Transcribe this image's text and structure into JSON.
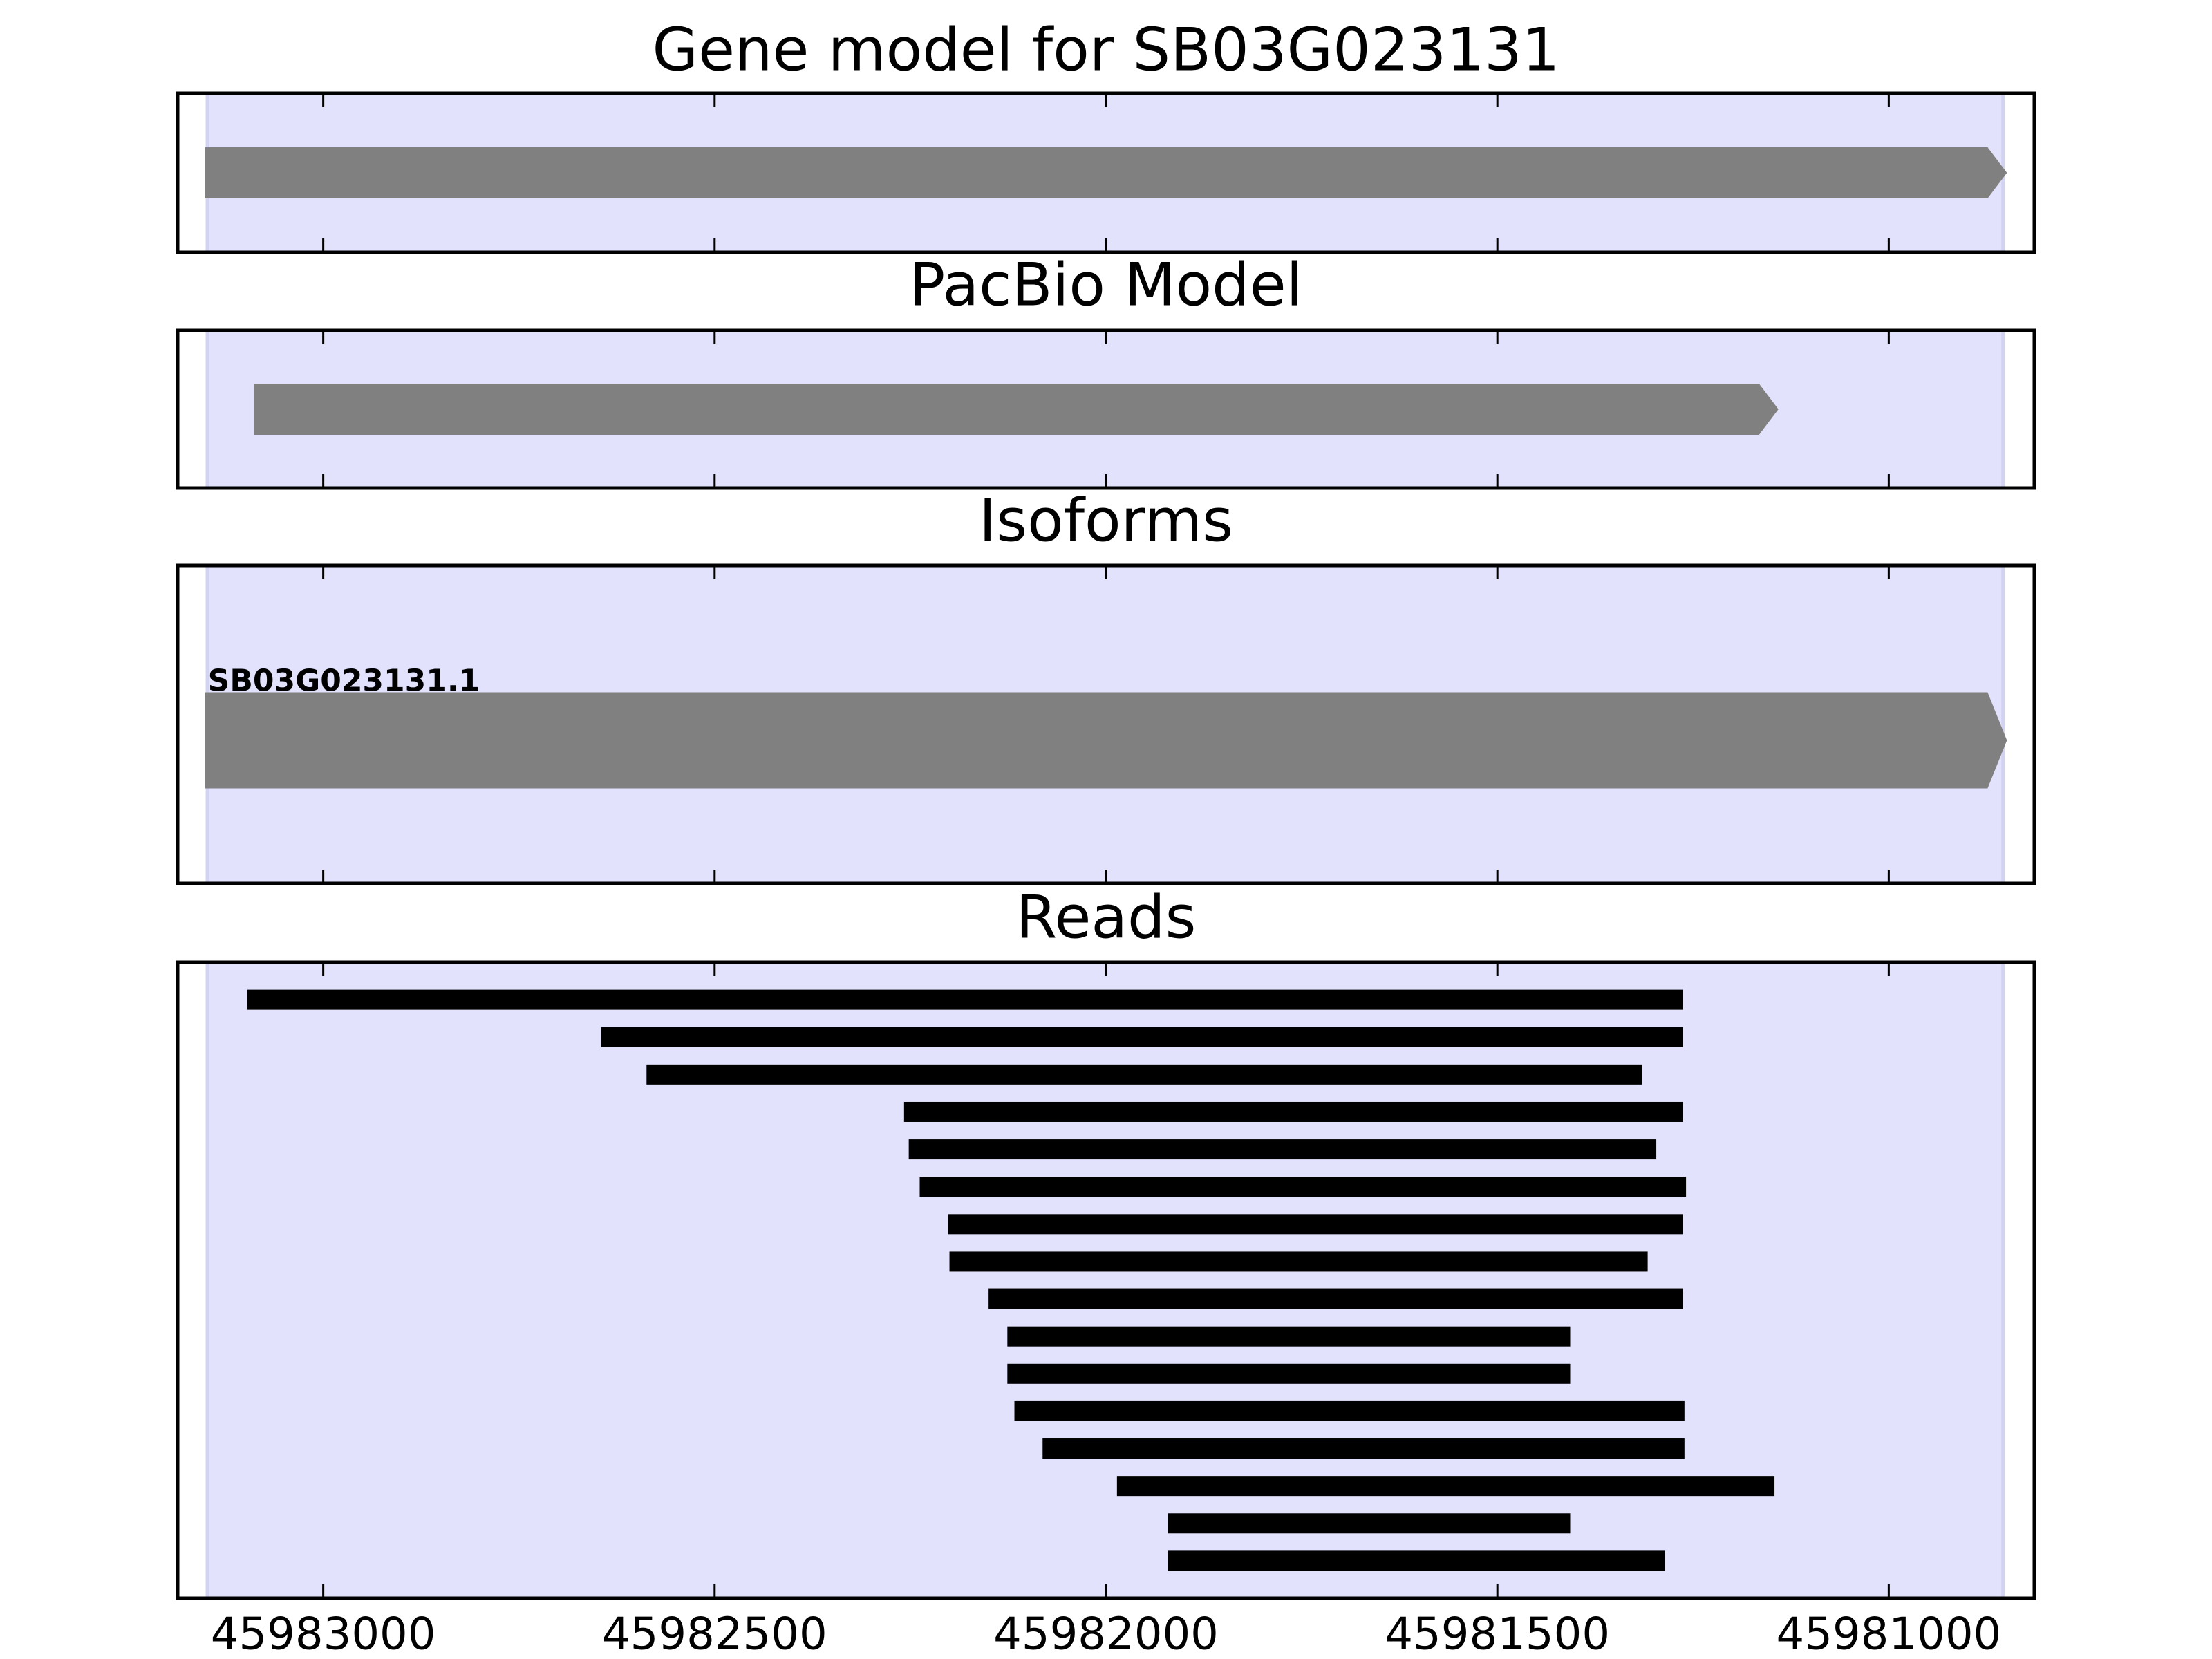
{
  "chart_data": {
    "type": "gene_tracks",
    "xlim": [
      45983186,
      45980814
    ],
    "xticks": [
      45983000,
      45982500,
      45982000,
      45981500,
      45981000
    ],
    "highlight": [
      45983148,
      45980854
    ],
    "highlight_color": "#e2e2fc",
    "feature_color": "#808080",
    "read_color": "#000000",
    "panels": [
      {
        "title": "Gene model for SB03G023131",
        "kind": "arrow",
        "features": [
          {
            "start": 45983151,
            "end": 45980849
          }
        ]
      },
      {
        "title": "PacBio Model",
        "kind": "arrow",
        "features": [
          {
            "start": 45983088,
            "end": 45981141
          }
        ]
      },
      {
        "title": "Isoforms",
        "kind": "arrow",
        "features": [
          {
            "name": "SB03G023131.1",
            "start": 45983151,
            "end": 45980849
          }
        ]
      },
      {
        "title": "Reads",
        "kind": "read",
        "features": [
          {
            "start": 45983097,
            "end": 45981263
          },
          {
            "start": 45982645,
            "end": 45981263
          },
          {
            "start": 45982587,
            "end": 45981315
          },
          {
            "start": 45982258,
            "end": 45981263
          },
          {
            "start": 45982252,
            "end": 45981297
          },
          {
            "start": 45982238,
            "end": 45981259
          },
          {
            "start": 45982202,
            "end": 45981263
          },
          {
            "start": 45982200,
            "end": 45981308
          },
          {
            "start": 45982150,
            "end": 45981263
          },
          {
            "start": 45982126,
            "end": 45981407
          },
          {
            "start": 45982126,
            "end": 45981407
          },
          {
            "start": 45982117,
            "end": 45981261
          },
          {
            "start": 45982081,
            "end": 45981261
          },
          {
            "start": 45981986,
            "end": 45981146
          },
          {
            "start": 45981921,
            "end": 45981407
          },
          {
            "start": 45981921,
            "end": 45981286
          }
        ]
      }
    ]
  }
}
